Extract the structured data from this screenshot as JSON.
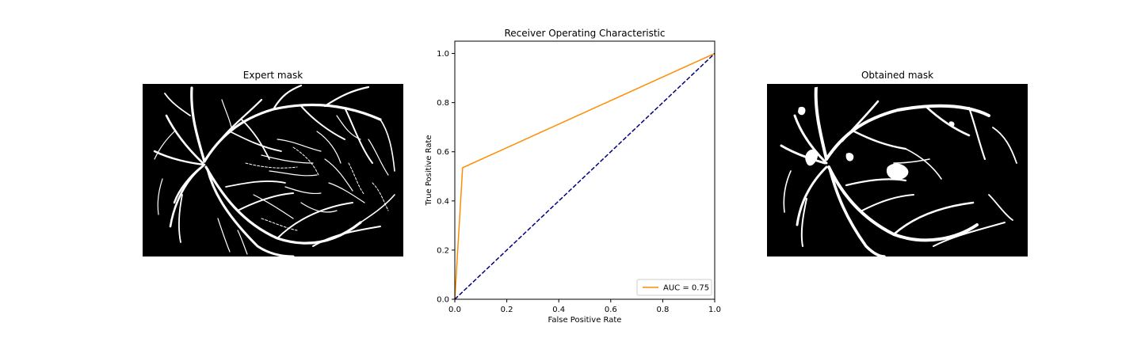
{
  "left_panel": {
    "title": "Expert mask"
  },
  "right_panel": {
    "title": "Obtained mask"
  },
  "chart_data": {
    "type": "line",
    "title": "Receiver Operating Characteristic",
    "xlabel": "False Positive Rate",
    "ylabel": "True Positive Rate",
    "xlim": [
      0,
      1
    ],
    "ylim": [
      0,
      1.05
    ],
    "xticks": [
      "0.0",
      "0.2",
      "0.4",
      "0.6",
      "0.8",
      "1.0"
    ],
    "yticks": [
      "0.0",
      "0.2",
      "0.4",
      "0.6",
      "0.8",
      "1.0"
    ],
    "grid": false,
    "legend_position": "lower-right",
    "series": [
      {
        "name": "AUC = 0.75",
        "color": "#ff8c00",
        "style": "solid",
        "x": [
          0.0,
          0.03,
          1.0
        ],
        "y": [
          0.0,
          0.535,
          1.0
        ]
      },
      {
        "color": "#000080",
        "style": "dashed",
        "x": [
          0.0,
          1.0
        ],
        "y": [
          0.0,
          1.0
        ]
      }
    ]
  }
}
